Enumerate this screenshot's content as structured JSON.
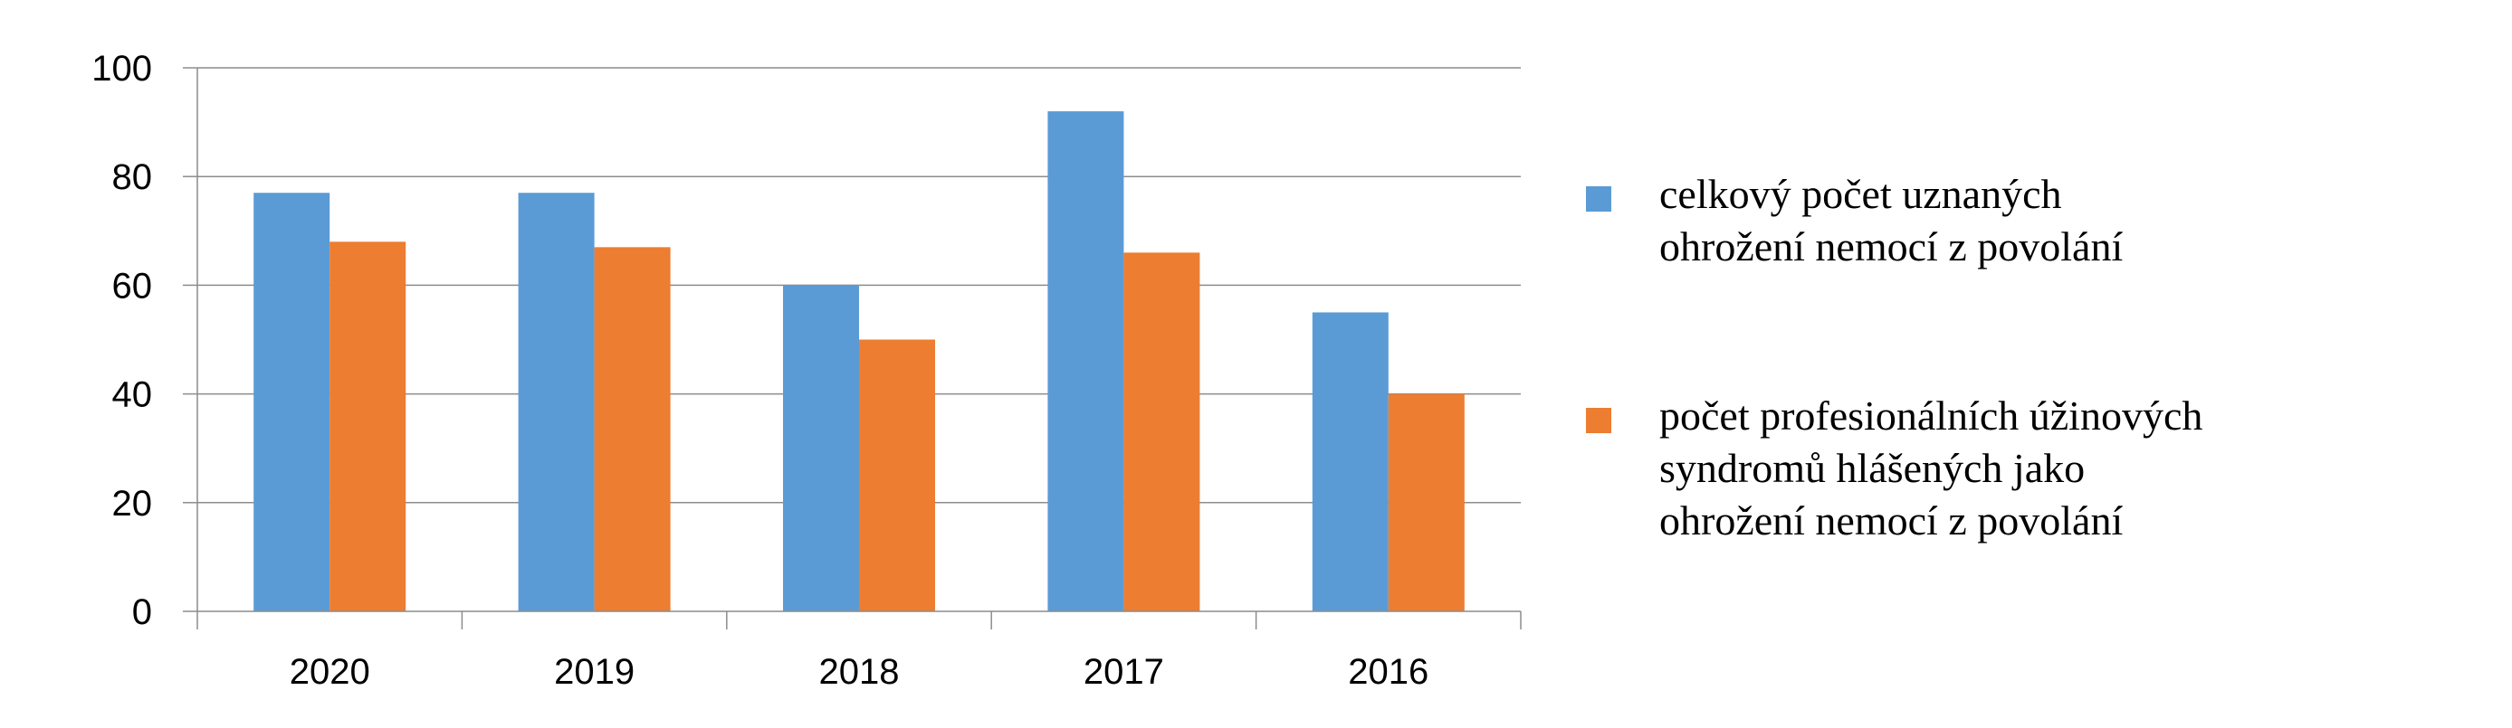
{
  "chart_data": {
    "type": "bar",
    "categories": [
      "2020",
      "2019",
      "2018",
      "2017",
      "2016"
    ],
    "series": [
      {
        "name": "celkový počet uznaných ohrožení nemocí z povolání",
        "legend_lines": [
          "celkový počet uznaných",
          "ohrožení nemocí z povolání"
        ],
        "color": "#5B9BD5",
        "values": [
          77,
          77,
          60,
          92,
          55
        ]
      },
      {
        "name": "počet profesionálních úžinových syndromů hlášených jako ohrožení nemocí z povolání",
        "legend_lines": [
          "počet profesionálních úžinových",
          "syndromů hlášených jako",
          "ohrožení nemocí z povolání"
        ],
        "color": "#ED7D31",
        "values": [
          68,
          67,
          50,
          66,
          40
        ]
      }
    ],
    "ylim": [
      0,
      100
    ],
    "yticks": [
      0,
      20,
      40,
      60,
      80,
      100
    ],
    "ytick_labels": [
      "0",
      "20",
      "40",
      "60",
      "80",
      "100"
    ],
    "grid": true,
    "legend_position": "right",
    "title": "",
    "xlabel": "",
    "ylabel": ""
  }
}
